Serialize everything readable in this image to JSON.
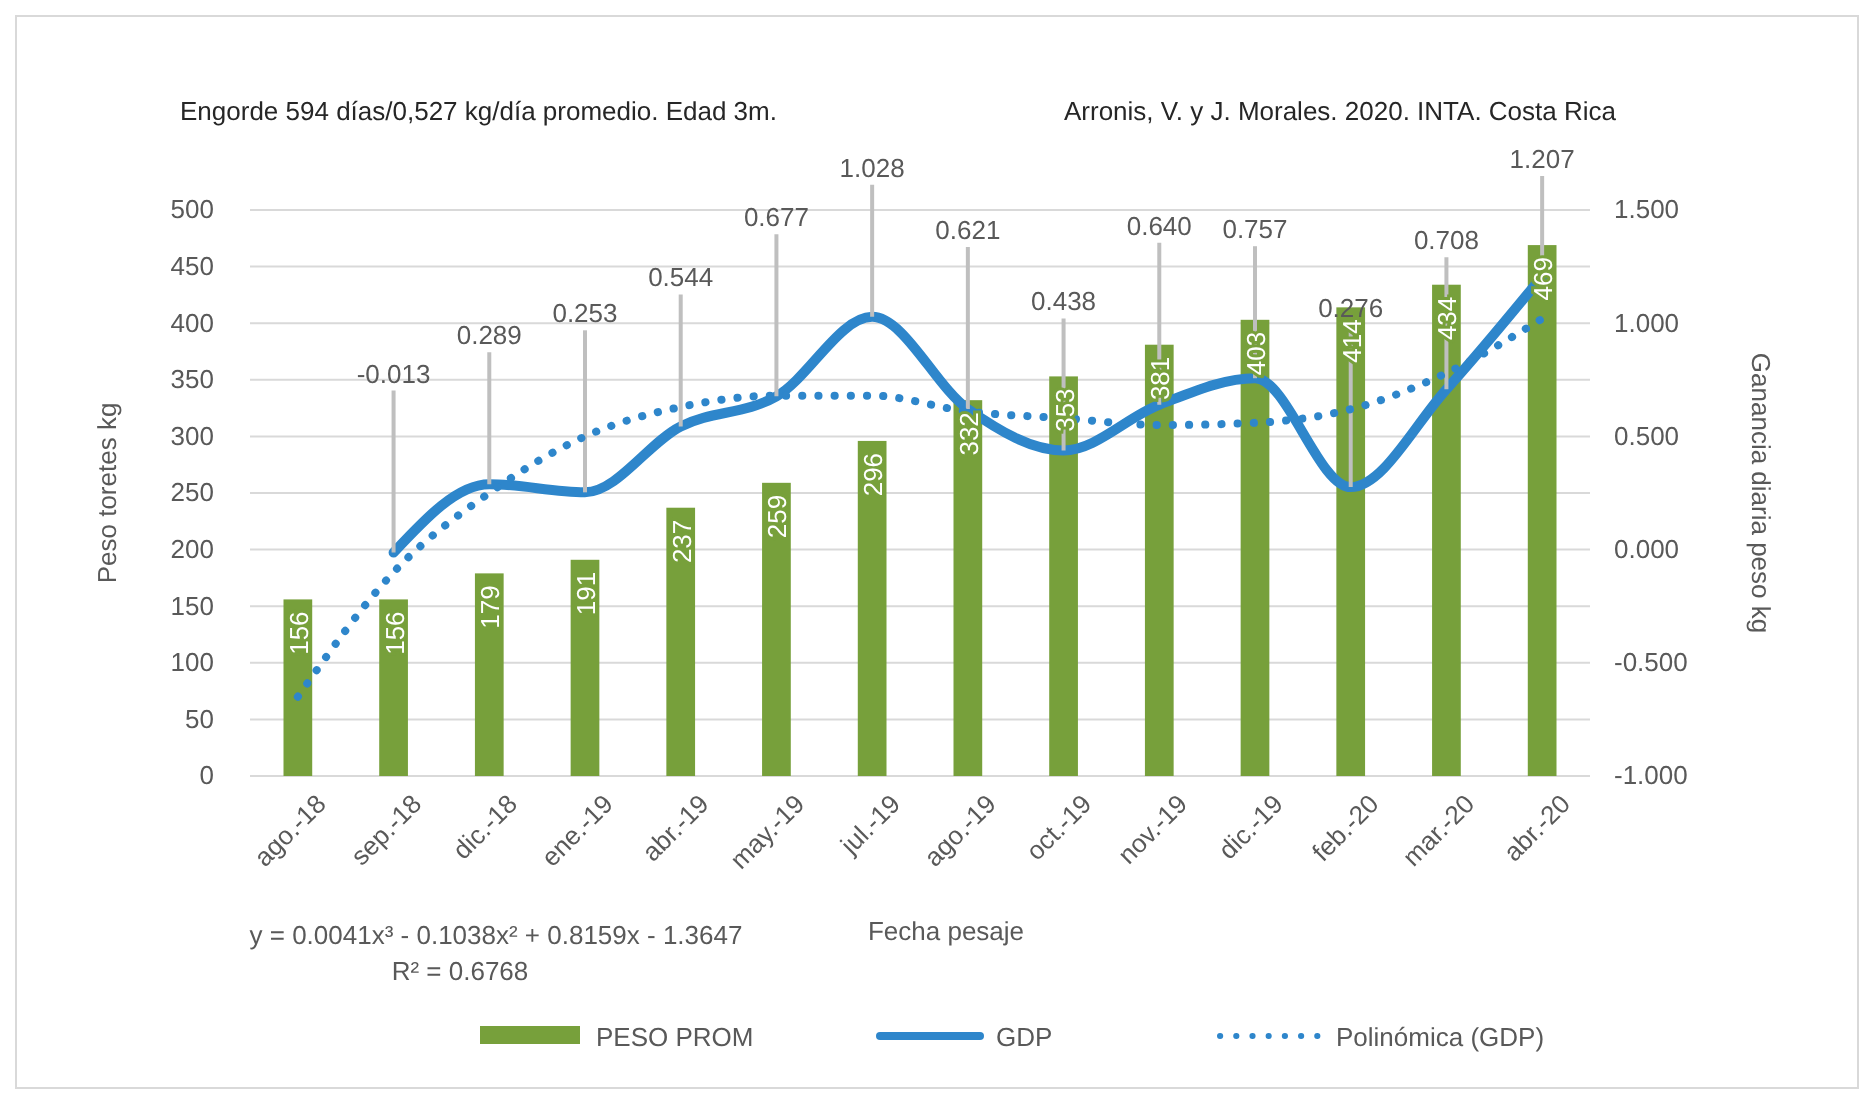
{
  "chart_data": {
    "type": "bar",
    "xlabel": "Fecha pesaje",
    "ylabel": "Peso toretes kg",
    "y2label": "Ganancia diaria peso kg",
    "annotations": [
      "Engorde 594 días/0,527 kg/día promedio. Edad 3m.",
      "Arronis, V. y J. Morales. 2020. INTA. Costa Rica",
      "y = 0.0041x³ - 0.1038x² + 0.8159x - 1.3647",
      "R² = 0.6768"
    ],
    "categories": [
      "ago.-18",
      "sep.-18",
      "dic.-18",
      "ene.-19",
      "abr.-19",
      "may.-19",
      "jul.-19",
      "ago.-19",
      "oct.-19",
      "nov.-19",
      "dic.-19",
      "feb.-20",
      "mar.-20",
      "abr.-20"
    ],
    "series": [
      {
        "name": "PESO PROM",
        "color": "#77a03b",
        "values": [
          156,
          156,
          179,
          191,
          237,
          259,
          296,
          332,
          353,
          381,
          403,
          414,
          434,
          469
        ],
        "value_labels": [
          "156",
          "156",
          "179",
          "191",
          "237",
          "259",
          "296",
          "332",
          "353",
          "381",
          "403",
          "414",
          "434",
          "469"
        ]
      },
      {
        "name": "GDP",
        "type": "line",
        "axis": "y2",
        "color": "#2e86cb",
        "line_style": "solid",
        "values": [
          null,
          -0.013,
          0.289,
          0.253,
          0.544,
          0.677,
          1.028,
          0.621,
          0.438,
          0.64,
          0.757,
          0.276,
          0.708,
          1.207
        ],
        "value_labels": [
          null,
          "-0.013",
          "0.289",
          "0.253",
          "0.544",
          "0.677",
          "1.028",
          "0.621",
          "0.438",
          "0.640",
          "0.757",
          "0.276",
          "0.708",
          "1.207"
        ]
      },
      {
        "name": "Polinómica (GDP)",
        "type": "line",
        "axis": "y2",
        "color": "#2e86cb",
        "line_style": "dotted",
        "values": [
          -0.65,
          -0.1,
          0.25,
          0.5,
          0.63,
          0.68,
          0.68,
          0.61,
          0.58,
          0.55,
          0.56,
          0.62,
          0.78,
          1.02
        ]
      }
    ],
    "ylim": [
      0,
      500
    ],
    "yticks": [
      0,
      50,
      100,
      150,
      200,
      250,
      300,
      350,
      400,
      450,
      500
    ],
    "y2lim": [
      -1,
      1.5
    ],
    "y2ticks": [
      {
        "value": -1,
        "label": "-1.000"
      },
      {
        "value": -0.5,
        "label": "-0.500"
      },
      {
        "value": 0,
        "label": "0.000"
      },
      {
        "value": 0.5,
        "label": "0.500"
      },
      {
        "value": 1,
        "label": "1.000"
      },
      {
        "value": 1.5,
        "label": "1.500"
      }
    ],
    "grid": "y",
    "legend": "bottom",
    "marker": "none"
  }
}
